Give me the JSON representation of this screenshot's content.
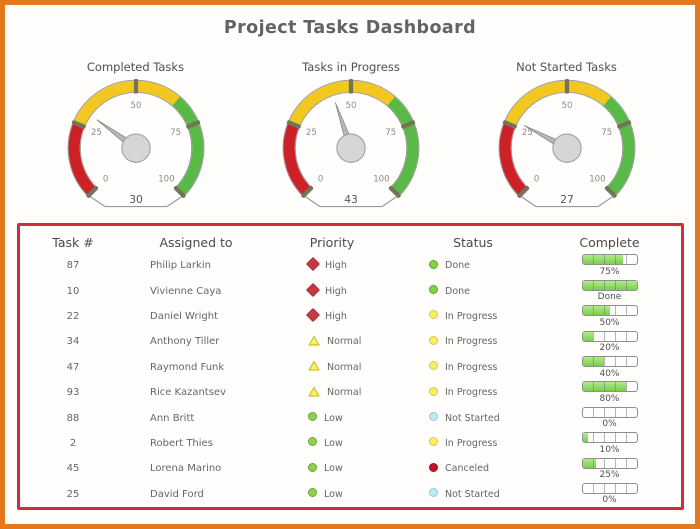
{
  "title": "Project Tasks Dashboard",
  "chart_data": [
    {
      "type": "gauge",
      "title": "Completed Tasks",
      "value": 30,
      "min": 0,
      "max": 100,
      "ticks": [
        0,
        25,
        50,
        75,
        100
      ],
      "bands": [
        {
          "from": 0,
          "to": 25,
          "color": "#cc2127"
        },
        {
          "from": 25,
          "to": 65,
          "color": "#f2c71f"
        },
        {
          "from": 65,
          "to": 100,
          "color": "#58b947"
        }
      ]
    },
    {
      "type": "gauge",
      "title": "Tasks in Progress",
      "value": 43,
      "min": 0,
      "max": 100,
      "ticks": [
        0,
        25,
        50,
        75,
        100
      ],
      "bands": [
        {
          "from": 0,
          "to": 25,
          "color": "#cc2127"
        },
        {
          "from": 25,
          "to": 65,
          "color": "#f2c71f"
        },
        {
          "from": 65,
          "to": 100,
          "color": "#58b947"
        }
      ]
    },
    {
      "type": "gauge",
      "title": "Not Started Tasks",
      "value": 27,
      "min": 0,
      "max": 100,
      "ticks": [
        0,
        25,
        50,
        75,
        100
      ],
      "bands": [
        {
          "from": 0,
          "to": 25,
          "color": "#cc2127"
        },
        {
          "from": 25,
          "to": 65,
          "color": "#f2c71f"
        },
        {
          "from": 65,
          "to": 100,
          "color": "#58b947"
        }
      ]
    },
    {
      "type": "table",
      "columns": [
        "Task #",
        "Assigned to",
        "Priority",
        "Status",
        "Complete"
      ],
      "rows": [
        [
          "87",
          "Philip Larkin",
          "High",
          "Done",
          "75%"
        ],
        [
          "10",
          "Vivienne Caya",
          "High",
          "Done",
          "Done"
        ],
        [
          "22",
          "Daniel Wright",
          "High",
          "In Progress",
          "50%"
        ],
        [
          "34",
          "Anthony Tiller",
          "Normal",
          "In Progress",
          "20%"
        ],
        [
          "47",
          "Raymond Funk",
          "Normal",
          "In Progress",
          "40%"
        ],
        [
          "93",
          "Rice Kazantsev",
          "Normal",
          "In Progress",
          "80%"
        ],
        [
          "88",
          "Ann Britt",
          "Low",
          "Not Started",
          "0%"
        ],
        [
          "2",
          "Robert Thies",
          "Low",
          "In Progress",
          "10%"
        ],
        [
          "45",
          "Lorena Marino",
          "Low",
          "Canceled",
          "25%"
        ],
        [
          "25",
          "David Ford",
          "Low",
          "Not Started",
          "0%"
        ]
      ]
    }
  ],
  "table": {
    "headers": [
      "Task #",
      "Assigned to",
      "Priority",
      "Status",
      "Complete"
    ],
    "rows": [
      {
        "task": "87",
        "assigned": "Philip Larkin",
        "priority": "High",
        "status": "Done",
        "percent": 75,
        "complete_label": "75%"
      },
      {
        "task": "10",
        "assigned": "Vivienne Caya",
        "priority": "High",
        "status": "Done",
        "percent": 100,
        "complete_label": "Done"
      },
      {
        "task": "22",
        "assigned": "Daniel Wright",
        "priority": "High",
        "status": "In Progress",
        "percent": 50,
        "complete_label": "50%"
      },
      {
        "task": "34",
        "assigned": "Anthony Tiller",
        "priority": "Normal",
        "status": "In Progress",
        "percent": 20,
        "complete_label": "20%"
      },
      {
        "task": "47",
        "assigned": "Raymond Funk",
        "priority": "Normal",
        "status": "In Progress",
        "percent": 40,
        "complete_label": "40%"
      },
      {
        "task": "93",
        "assigned": "Rice Kazantsev",
        "priority": "Normal",
        "status": "In Progress",
        "percent": 80,
        "complete_label": "80%"
      },
      {
        "task": "88",
        "assigned": "Ann Britt",
        "priority": "Low",
        "status": "Not Started",
        "percent": 0,
        "complete_label": "0%"
      },
      {
        "task": "2",
        "assigned": "Robert Thies",
        "priority": "Low",
        "status": "In Progress",
        "percent": 10,
        "complete_label": "10%"
      },
      {
        "task": "45",
        "assigned": "Lorena Marino",
        "priority": "Low",
        "status": "Canceled",
        "percent": 25,
        "complete_label": "25%"
      },
      {
        "task": "25",
        "assigned": "David Ford",
        "priority": "Low",
        "status": "Not Started",
        "percent": 0,
        "complete_label": "0%"
      }
    ]
  },
  "icons": {
    "priority": {
      "High": {
        "shape": "diamond",
        "fill": "#c43a40",
        "stroke": "#a5303a"
      },
      "Normal": {
        "shape": "triangle",
        "fill": "#f9ef68",
        "stroke": "#cfc12e"
      },
      "Low": {
        "shape": "circle",
        "fill": "#8ed150",
        "stroke": "#62aa30"
      }
    },
    "status": {
      "Done": {
        "fill": "#86d243",
        "stroke": "#5aa52c"
      },
      "In Progress": {
        "fill": "#f7ee6d",
        "stroke": "#d9ca35"
      },
      "Not Started": {
        "fill": "#bfe9ec",
        "stroke": "#8fced5"
      },
      "Canceled": {
        "fill": "#c41326",
        "stroke": "#99101e"
      }
    }
  },
  "colors": {
    "outer_border": "#e2791f",
    "table_border": "#d12d3a",
    "band_red": "#cc2127",
    "band_yellow": "#f2c71f",
    "band_green": "#58b947",
    "tick_marker": "#74745c",
    "needle": "#b8b8b8",
    "hub": "#d6d6d6",
    "progress_fill": "#77cf49"
  }
}
